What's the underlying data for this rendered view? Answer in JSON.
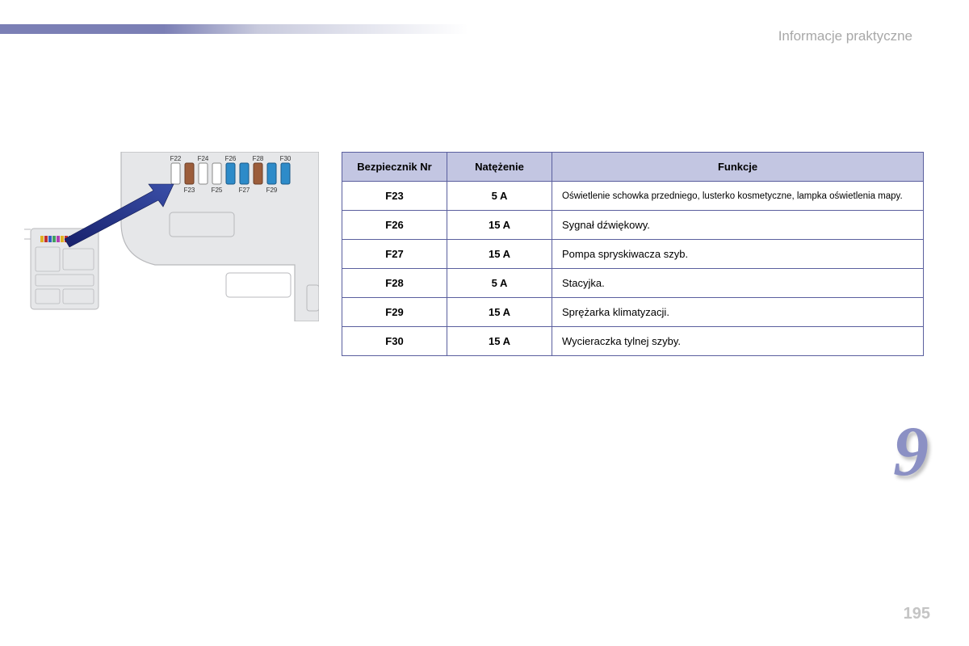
{
  "header": {
    "section_title": "Informacje praktyczne",
    "bar_color_start": "#7b7fb5",
    "bar_color_end": "#ffffff"
  },
  "chapter_number": "9",
  "page_number": "195",
  "diagram": {
    "panel_bg": "#e6e7e9",
    "panel_stroke": "#b8b9bc",
    "subpanel_bg": "#e6e7e9",
    "arrow_color": "#17206b",
    "arrow_color2": "#3a4fa8",
    "fuses": [
      {
        "id": "F22",
        "fill": "#ffffff",
        "stroke": "#888888"
      },
      {
        "id": "F23",
        "fill": "#9c5d3b",
        "stroke": "#6b3f28"
      },
      {
        "id": "F24",
        "fill": "#ffffff",
        "stroke": "#888888"
      },
      {
        "id": "F25",
        "fill": "#ffffff",
        "stroke": "#888888"
      },
      {
        "id": "F26",
        "fill": "#2d8bc9",
        "stroke": "#1a5a87"
      },
      {
        "id": "F27",
        "fill": "#2d8bc9",
        "stroke": "#1a5a87"
      },
      {
        "id": "F28",
        "fill": "#9c5d3b",
        "stroke": "#6b3f28"
      },
      {
        "id": "F29",
        "fill": "#2d8bc9",
        "stroke": "#1a5a87"
      },
      {
        "id": "F30",
        "fill": "#2d8bc9",
        "stroke": "#1a5a87"
      }
    ],
    "stripe_colors": [
      "#e0b020",
      "#c03030",
      "#3060c0",
      "#40a060",
      "#b040b0",
      "#e0b020",
      "#c03030",
      "#3060c0"
    ]
  },
  "table": {
    "headers": [
      "Bezpiecznik Nr",
      "Natężenie",
      "Funkcje"
    ],
    "header_bg": "#c3c6e2",
    "border_color": "#5a5f9e",
    "rows": [
      {
        "num": "F23",
        "amp": "5 A",
        "func": "Oświetlenie schowka przedniego, lusterko kosmetyczne, lampka oświetlenia mapy."
      },
      {
        "num": "F26",
        "amp": "15 A",
        "func": "Sygnał dźwiękowy."
      },
      {
        "num": "F27",
        "amp": "15 A",
        "func": "Pompa spryskiwacza szyb."
      },
      {
        "num": "F28",
        "amp": "5 A",
        "func": "Stacyjka."
      },
      {
        "num": "F29",
        "amp": "15 A",
        "func": "Sprężarka klimatyzacji."
      },
      {
        "num": "F30",
        "amp": "15 A",
        "func": "Wycieraczka tylnej szyby."
      }
    ]
  }
}
